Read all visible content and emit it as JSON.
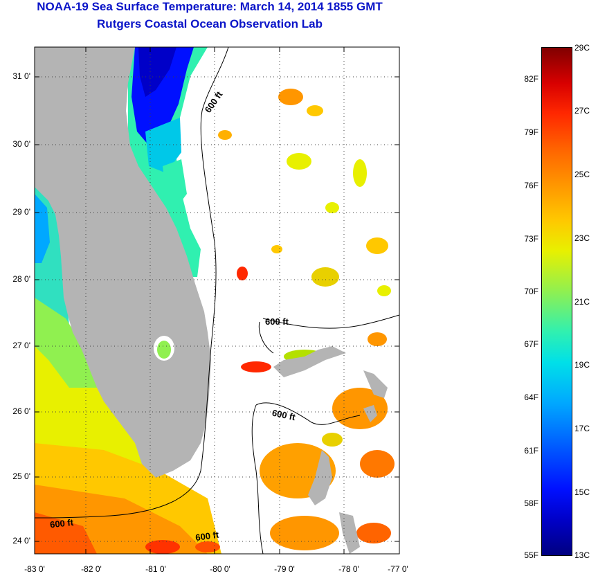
{
  "header": {
    "title": "NOAA-19 Sea Surface Temperature:  March 14, 2014 1855 GMT",
    "subtitle": "Rutgers Coastal Ocean Observation Lab"
  },
  "axes": {
    "lat_labels": [
      "31 0'",
      "30 0'",
      "29 0'",
      "28 0'",
      "27 0'",
      "26 0'",
      "25 0'",
      "24 0'"
    ],
    "lon_labels": [
      "-83 0'",
      "-82 0'",
      "-81 0'",
      "-80 0'",
      "-79 0'",
      "-78 0'",
      "-77 0'"
    ]
  },
  "contours": {
    "label": "600 ft",
    "labels": [
      "600 ft",
      "600 ft",
      "600 ft",
      "600 ft",
      "600 ft"
    ]
  },
  "colorbar": {
    "fahrenheit": [
      "82F",
      "79F",
      "76F",
      "73F",
      "70F",
      "67F",
      "64F",
      "61F",
      "58F",
      "55F"
    ],
    "celsius": [
      "29C",
      "27C",
      "25C",
      "23C",
      "21C",
      "19C",
      "17C",
      "15C",
      "13C"
    ]
  },
  "colors": {
    "title": "#0a14c8",
    "land": "#b4b4b4",
    "cold": "#0000c8",
    "warm": "#ff4000"
  }
}
